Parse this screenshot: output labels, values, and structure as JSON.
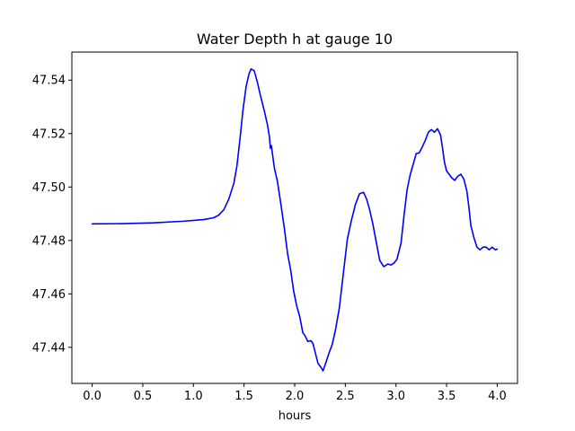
{
  "chart_data": {
    "type": "line",
    "title": "Water Depth h at gauge 10",
    "xlabel": "hours",
    "ylabel": "",
    "xlim": [
      -0.2,
      4.2
    ],
    "ylim": [
      47.4265,
      47.5505
    ],
    "xticks": [
      0.0,
      0.5,
      1.0,
      1.5,
      2.0,
      2.5,
      3.0,
      3.5,
      4.0
    ],
    "xtick_labels": [
      "0.0",
      "0.5",
      "1.0",
      "1.5",
      "2.0",
      "2.5",
      "3.0",
      "3.5",
      "4.0"
    ],
    "yticks": [
      47.44,
      47.46,
      47.48,
      47.5,
      47.52,
      47.54
    ],
    "ytick_labels": [
      "47.44",
      "47.46",
      "47.48",
      "47.50",
      "47.52",
      "47.54"
    ],
    "grid": false,
    "series": [
      {
        "color": "#0000ff",
        "x": [
          0.0,
          0.3,
          0.6,
          0.9,
          1.1,
          1.2,
          1.25,
          1.3,
          1.35,
          1.4,
          1.43,
          1.46,
          1.49,
          1.52,
          1.55,
          1.57,
          1.6,
          1.63,
          1.66,
          1.7,
          1.73,
          1.75,
          1.76,
          1.77,
          1.78,
          1.8,
          1.83,
          1.86,
          1.9,
          1.93,
          1.96,
          1.99,
          2.02,
          2.05,
          2.08,
          2.1,
          2.13,
          2.16,
          2.18,
          2.2,
          2.23,
          2.26,
          2.28,
          2.31,
          2.34,
          2.37,
          2.4,
          2.44,
          2.48,
          2.52,
          2.56,
          2.6,
          2.64,
          2.68,
          2.71,
          2.74,
          2.77,
          2.8,
          2.84,
          2.88,
          2.92,
          2.95,
          2.98,
          3.01,
          3.05,
          3.08,
          3.11,
          3.14,
          3.17,
          3.2,
          3.23,
          3.26,
          3.29,
          3.32,
          3.35,
          3.38,
          3.41,
          3.44,
          3.46,
          3.48,
          3.5,
          3.52,
          3.55,
          3.58,
          3.61,
          3.64,
          3.67,
          3.7,
          3.72,
          3.74,
          3.77,
          3.8,
          3.83,
          3.86,
          3.89,
          3.92,
          3.95,
          3.98,
          4.0
        ],
        "y": [
          47.4862,
          47.4863,
          47.4866,
          47.4872,
          47.4878,
          47.4885,
          47.4895,
          47.4915,
          47.4955,
          47.5015,
          47.508,
          47.518,
          47.529,
          47.5375,
          47.5425,
          47.5442,
          47.5435,
          47.5395,
          47.5345,
          47.5285,
          47.5235,
          47.519,
          47.5145,
          47.5155,
          47.5125,
          47.507,
          47.502,
          47.4945,
          47.484,
          47.475,
          47.469,
          47.461,
          47.4555,
          47.4515,
          47.4455,
          47.4445,
          47.4422,
          47.4425,
          47.4415,
          47.4385,
          47.434,
          47.4325,
          47.4312,
          47.4345,
          47.438,
          47.441,
          47.446,
          47.4545,
          47.4675,
          47.4805,
          47.4875,
          47.4935,
          47.4975,
          47.498,
          47.4955,
          47.4915,
          47.4865,
          47.4805,
          47.4725,
          47.4702,
          47.4712,
          47.4708,
          47.4715,
          47.473,
          47.479,
          47.4895,
          47.499,
          47.5045,
          47.5085,
          47.5125,
          47.5128,
          47.515,
          47.5175,
          47.5205,
          47.5215,
          47.5205,
          47.5218,
          47.5195,
          47.5145,
          47.509,
          47.506,
          47.505,
          47.5035,
          47.5025,
          47.504,
          47.5048,
          47.503,
          47.4985,
          47.4925,
          47.4855,
          47.481,
          47.4775,
          47.4765,
          47.4775,
          47.4775,
          47.4765,
          47.4775,
          47.4765,
          47.4768
        ]
      }
    ]
  }
}
